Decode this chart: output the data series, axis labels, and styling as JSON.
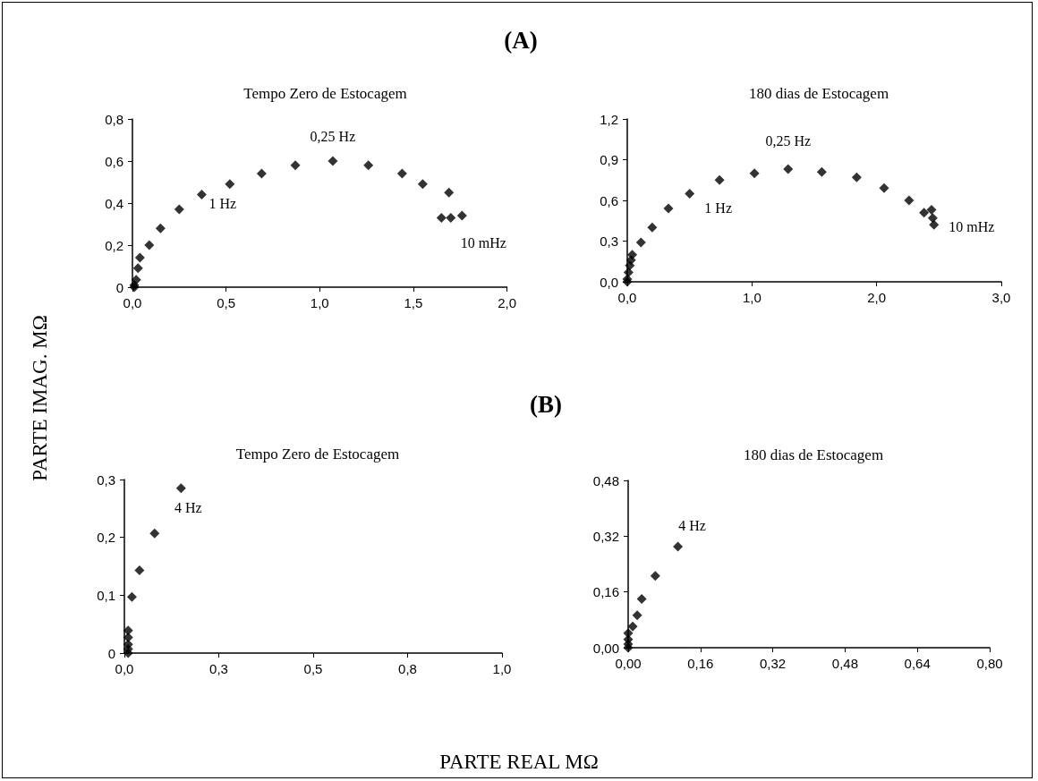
{
  "chart_data": [
    {
      "type": "scatter",
      "title": "Tempo Zero de Estocagem",
      "ylabel": "PARTE IMAG. MΩ",
      "annotations": [
        "(A)",
        {
          "text": "1 Hz",
          "x": 0.52,
          "y": 0.49
        },
        {
          "text": "0,25 Hz",
          "x": 1.07,
          "y": 0.6
        },
        {
          "text": "10 mHz",
          "x": 1.76,
          "y": 0.34
        }
      ],
      "x": [
        0.01,
        0.01,
        0.02,
        0.03,
        0.04,
        0.09,
        0.15,
        0.25,
        0.37,
        0.52,
        0.69,
        0.87,
        1.07,
        1.26,
        1.44,
        1.55,
        1.69,
        1.65,
        1.7,
        1.76
      ],
      "series": [
        {
          "color": "#000000",
          "values": [
            0,
            0.01,
            0.035,
            0.09,
            0.14,
            0.2,
            0.28,
            0.37,
            0.44,
            0.49,
            0.54,
            0.58,
            0.6,
            0.58,
            0.54,
            0.49,
            0.45,
            0.33,
            0.33,
            0.34
          ]
        }
      ],
      "xlim": [
        0,
        2
      ],
      "xticks": [
        {
          "value": 0,
          "label": "0,0"
        },
        {
          "value": 0.5,
          "label": "0,5"
        },
        {
          "value": 1,
          "label": "1,0"
        },
        {
          "value": 1.5,
          "label": "1,5"
        },
        {
          "value": 2,
          "label": "2,0"
        }
      ],
      "ylim": [
        0,
        0.8
      ],
      "yticks": [
        0,
        {
          "value": 0.2,
          "label": "0,2"
        },
        {
          "value": 0.4,
          "label": "0,4"
        },
        {
          "value": 0.6,
          "label": "0,6"
        },
        {
          "value": 0.8,
          "label": "0,8"
        }
      ],
      "marker": "diamond"
    },
    {
      "type": "scatter",
      "title": "180 dias de Estocagem",
      "annotations": [
        {
          "text": "1 Hz",
          "x": 0.5,
          "y": 0.65
        },
        {
          "text": "0,25 Hz",
          "x": 1.29,
          "y": 0.83
        },
        {
          "text": "10 mHz",
          "x": 2.46,
          "y": 0.42
        }
      ],
      "x": [
        0,
        0,
        0.01,
        0.02,
        0.03,
        0.04,
        0.11,
        0.2,
        0.33,
        0.5,
        0.74,
        1.02,
        1.29,
        1.56,
        1.84,
        2.06,
        2.26,
        2.38,
        2.44,
        2.45,
        2.46
      ],
      "series": [
        {
          "color": "#000000",
          "values": [
            0,
            0.02,
            0.07,
            0.12,
            0.16,
            0.2,
            0.29,
            0.4,
            0.54,
            0.65,
            0.75,
            0.8,
            0.83,
            0.81,
            0.77,
            0.69,
            0.6,
            0.51,
            0.53,
            0.47,
            0.42
          ]
        }
      ],
      "xlim": [
        0,
        3
      ],
      "xticks": [
        {
          "value": 0,
          "label": "0,0"
        },
        {
          "value": 1,
          "label": "1,0"
        },
        {
          "value": 2,
          "label": "2,0"
        },
        {
          "value": 3,
          "label": "3,0"
        }
      ],
      "ylim": [
        0,
        1.2
      ],
      "yticks": [
        {
          "value": 0,
          "label": "0,0"
        },
        {
          "value": 0.3,
          "label": "0,3"
        },
        {
          "value": 0.6,
          "label": "0,6"
        },
        {
          "value": 0.9,
          "label": "0,9"
        },
        {
          "value": 1.2,
          "label": "1,2"
        }
      ],
      "marker": "diamond"
    },
    {
      "type": "scatter",
      "title": "Tempo Zero de Estocagem",
      "xlabel": "PARTE REAL MΩ",
      "annotations": [
        "(B)",
        {
          "text": "4 Hz",
          "x": 0.15,
          "y": 0.285
        }
      ],
      "x": [
        0.01,
        0.01,
        0.01,
        0.01,
        0.01,
        0.02,
        0.04,
        0.08,
        0.15
      ],
      "series": [
        {
          "color": "#000000",
          "values": [
            0,
            0.007,
            0.015,
            0.027,
            0.039,
            0.097,
            0.143,
            0.207,
            0.285
          ]
        }
      ],
      "xlim": [
        0,
        1
      ],
      "xticks": [
        {
          "value": 0,
          "label": "0,0"
        },
        {
          "value": 0.25,
          "label": "0,3"
        },
        {
          "value": 0.5,
          "label": "0,5"
        },
        {
          "value": 0.75,
          "label": "0,8"
        },
        {
          "value": 1,
          "label": "1,0"
        }
      ],
      "ylim": [
        0,
        0.3
      ],
      "yticks": [
        0,
        {
          "value": 0.1,
          "label": "0,1"
        },
        {
          "value": 0.2,
          "label": "0,2"
        },
        {
          "value": 0.3,
          "label": "0,3"
        }
      ],
      "marker": "diamond"
    },
    {
      "type": "scatter",
      "title": "180 dias de Estocagem",
      "annotations": [
        {
          "text": "4 Hz",
          "x": 0.11,
          "y": 0.29
        }
      ],
      "x": [
        0,
        0,
        0,
        0,
        0.01,
        0.02,
        0.03,
        0.06,
        0.11
      ],
      "series": [
        {
          "color": "#000000",
          "values": [
            0,
            0.01,
            0.024,
            0.042,
            0.061,
            0.093,
            0.14,
            0.206,
            0.29
          ]
        }
      ],
      "xlim": [
        0,
        0.8
      ],
      "xticks": [
        {
          "value": 0,
          "label": "0,00"
        },
        {
          "value": 0.16,
          "label": "0,16"
        },
        {
          "value": 0.32,
          "label": "0,32"
        },
        {
          "value": 0.48,
          "label": "0,48"
        },
        {
          "value": 0.64,
          "label": "0,64"
        },
        {
          "value": 0.8,
          "label": "0,80"
        }
      ],
      "ylim": [
        0,
        0.48
      ],
      "yticks": [
        {
          "value": 0,
          "label": "0,00"
        },
        {
          "value": 0.16,
          "label": "0,16"
        },
        {
          "value": 0.32,
          "label": "0,32"
        },
        {
          "value": 0.48,
          "label": "0,48"
        }
      ],
      "marker": "diamond"
    }
  ]
}
